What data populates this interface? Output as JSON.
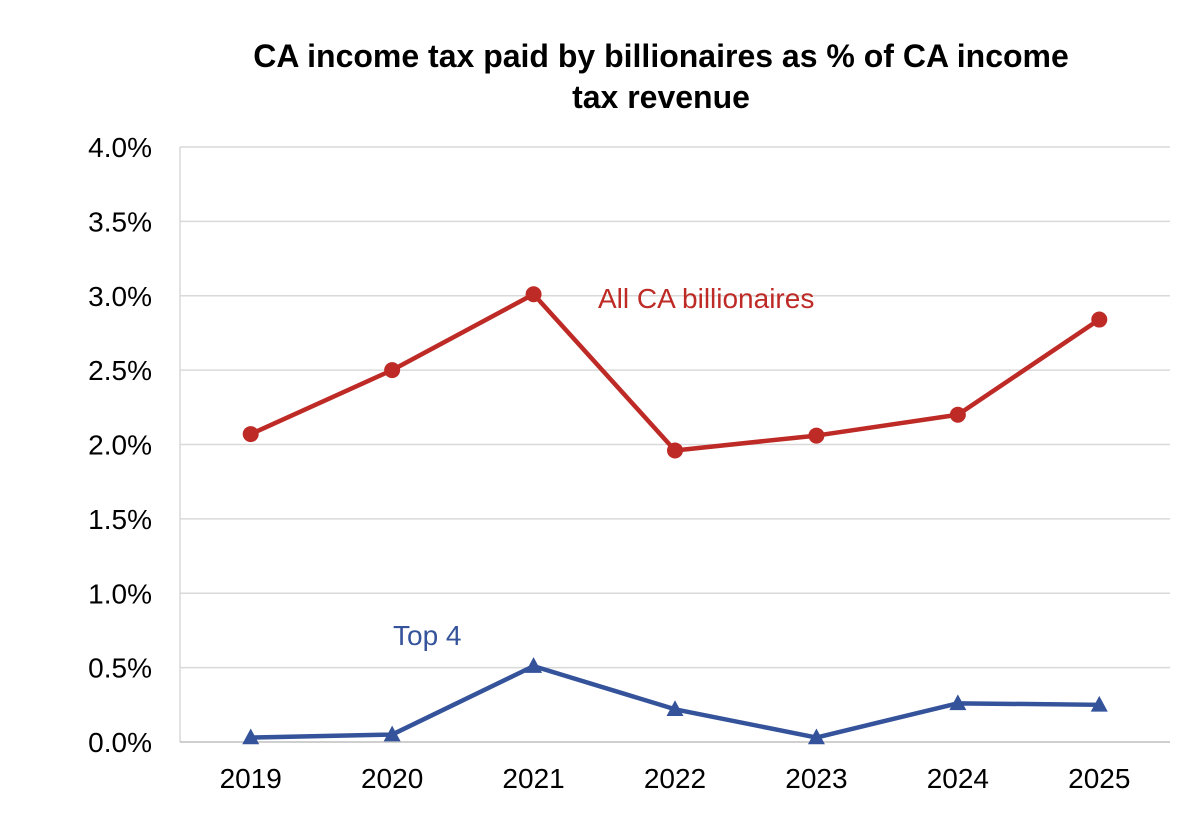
{
  "chart_data": {
    "type": "line",
    "title_lines": [
      "CA income tax paid by billionaires as % of CA income",
      "tax revenue"
    ],
    "xlabel": "",
    "ylabel": "",
    "categories": [
      "2019",
      "2020",
      "2021",
      "2022",
      "2023",
      "2024",
      "2025"
    ],
    "y_ticks": [
      "0.0%",
      "0.5%",
      "1.0%",
      "1.5%",
      "2.0%",
      "2.5%",
      "3.0%",
      "3.5%",
      "4.0%"
    ],
    "y_tick_values": [
      0,
      0.5,
      1.0,
      1.5,
      2.0,
      2.5,
      3.0,
      3.5,
      4.0
    ],
    "ylim": [
      0,
      4.0
    ],
    "y_unit": "%",
    "grid": true,
    "legend": "none",
    "series": [
      {
        "name": "All CA billionaires",
        "color": "#be2a25",
        "marker": "circle",
        "values": [
          2.07,
          2.5,
          3.01,
          1.96,
          2.06,
          2.2,
          2.84
        ]
      },
      {
        "name": "Top 4",
        "color": "#35539a",
        "marker": "triangle",
        "values": [
          0.03,
          0.05,
          0.51,
          0.22,
          0.03,
          0.26,
          0.25
        ]
      }
    ]
  }
}
